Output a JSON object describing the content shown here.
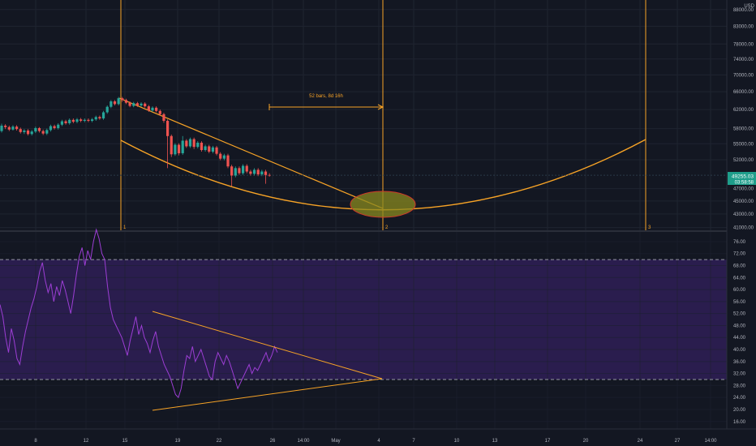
{
  "colors": {
    "background": "#131722",
    "grid": "#1f2430",
    "axis_text": "#b2b5be",
    "bull": "#26a69a",
    "bear": "#ef5350",
    "drawing": "#f7a326",
    "rsi_line": "#9c3ed4",
    "rsi_band": "#2a1d4e",
    "price_badge": "#1e9e8b",
    "ellipse_fill": "#8a8a1f",
    "ellipse_stroke": "#d03a2a"
  },
  "price_axis": {
    "currency": "USD",
    "scale": "log",
    "ticks": [
      "88000.00",
      "83000.00",
      "78000.00",
      "74000.00",
      "70000.00",
      "66000.00",
      "62000.00",
      "58000.00",
      "55000.00",
      "52000.00",
      "47000.00",
      "45000.00",
      "43000.00",
      "41000.00"
    ],
    "last_price": "49255.03",
    "countdown": "03:58:58"
  },
  "rsi_axis": {
    "ticks": [
      "76.00",
      "72.00",
      "68.00",
      "64.00",
      "60.00",
      "56.00",
      "52.00",
      "48.00",
      "44.00",
      "40.00",
      "36.00",
      "32.00",
      "28.00",
      "24.00",
      "20.00",
      "16.00"
    ],
    "upper_band": 70,
    "lower_band": 30
  },
  "time_axis": {
    "ticks": [
      "8",
      "12",
      "15",
      "19",
      "22",
      "26",
      "14:00",
      "May",
      "4",
      "7",
      "10",
      "13",
      "17",
      "20",
      "24",
      "27",
      "14:00"
    ]
  },
  "annotations": {
    "measure_label": "52 bars, 8d 16h",
    "vline_labels": [
      "1",
      "2",
      "3"
    ]
  },
  "chart_data": {
    "type": "candlestick",
    "scale": "log",
    "ylim": [
      40500,
      91000
    ],
    "x_categories": [
      "8",
      "12",
      "15",
      "19",
      "22",
      "26",
      "14:00",
      "May",
      "4",
      "7",
      "10",
      "13",
      "17",
      "20",
      "24",
      "27",
      "14:00"
    ],
    "candles": [
      [
        57500,
        58600,
        57200,
        59000
      ],
      [
        58600,
        58300,
        57900,
        58900
      ],
      [
        58300,
        57800,
        57500,
        58600
      ],
      [
        57800,
        58400,
        57600,
        58700
      ],
      [
        58400,
        57900,
        57600,
        58700
      ],
      [
        57900,
        57300,
        57000,
        58200
      ],
      [
        57300,
        57600,
        56900,
        57900
      ],
      [
        57600,
        56900,
        56600,
        57900
      ],
      [
        56900,
        57400,
        56600,
        57700
      ],
      [
        57400,
        58100,
        57100,
        58400
      ],
      [
        58100,
        57500,
        57200,
        58300
      ],
      [
        57500,
        57000,
        56700,
        57800
      ],
      [
        57000,
        57700,
        56700,
        58000
      ],
      [
        57700,
        58500,
        57400,
        58800
      ],
      [
        58500,
        58100,
        57800,
        58800
      ],
      [
        58100,
        58800,
        57800,
        59100
      ],
      [
        58800,
        59500,
        58500,
        59800
      ],
      [
        59500,
        59100,
        58800,
        59800
      ],
      [
        59100,
        59800,
        58800,
        60100
      ],
      [
        59800,
        59400,
        59100,
        60100
      ],
      [
        59400,
        59900,
        59100,
        60200
      ],
      [
        59900,
        59600,
        59300,
        60200
      ],
      [
        59600,
        59800,
        59300,
        60100
      ],
      [
        59800,
        59600,
        59300,
        60100
      ],
      [
        59600,
        59900,
        59300,
        60200
      ],
      [
        59900,
        60400,
        59600,
        60700
      ],
      [
        60400,
        60100,
        59800,
        60700
      ],
      [
        60100,
        61400,
        59800,
        61700
      ],
      [
        61400,
        62600,
        61100,
        62900
      ],
      [
        62600,
        63800,
        62300,
        64100
      ],
      [
        63800,
        63200,
        62900,
        64100
      ],
      [
        63200,
        64500,
        62900,
        64800
      ],
      [
        64500,
        64100,
        63700,
        64800
      ],
      [
        64100,
        63500,
        63200,
        64400
      ],
      [
        63500,
        62800,
        62500,
        63800
      ],
      [
        62800,
        63400,
        62500,
        63700
      ],
      [
        63400,
        62900,
        62600,
        63700
      ],
      [
        62900,
        63300,
        62600,
        63600
      ],
      [
        63300,
        62700,
        62400,
        63600
      ],
      [
        62700,
        61800,
        61500,
        63000
      ],
      [
        61800,
        62400,
        61500,
        62700
      ],
      [
        62400,
        61700,
        61400,
        62700
      ],
      [
        61700,
        61000,
        60700,
        62000
      ],
      [
        61000,
        59600,
        59200,
        61300
      ],
      [
        59600,
        56500,
        50500,
        59900
      ],
      [
        56500,
        53000,
        52500,
        56800
      ],
      [
        53000,
        54800,
        52700,
        55100
      ],
      [
        54800,
        53200,
        52800,
        55100
      ],
      [
        53200,
        55600,
        52900,
        56500
      ],
      [
        55600,
        54500,
        54200,
        55900
      ],
      [
        54500,
        55900,
        54200,
        56200
      ],
      [
        55900,
        54400,
        54000,
        56200
      ],
      [
        54400,
        55200,
        54100,
        55500
      ],
      [
        55200,
        53800,
        53500,
        55500
      ],
      [
        53800,
        54500,
        53500,
        54800
      ],
      [
        54500,
        53500,
        53200,
        54800
      ],
      [
        53500,
        54300,
        53200,
        54600
      ],
      [
        54300,
        53100,
        52800,
        54600
      ],
      [
        53100,
        52200,
        51900,
        53400
      ],
      [
        52200,
        52800,
        51900,
        53100
      ],
      [
        52800,
        50800,
        50500,
        53100
      ],
      [
        50800,
        49200,
        47400,
        51100
      ],
      [
        49200,
        50500,
        48900,
        50800
      ],
      [
        50500,
        49600,
        49300,
        50800
      ],
      [
        49600,
        50900,
        49300,
        51200
      ],
      [
        50900,
        49900,
        49600,
        51200
      ],
      [
        49900,
        49500,
        49200,
        50200
      ],
      [
        49500,
        50200,
        49200,
        50500
      ],
      [
        50200,
        49400,
        49100,
        50500
      ],
      [
        49400,
        49900,
        49100,
        50200
      ],
      [
        49900,
        49300,
        47800,
        50200
      ],
      [
        49300,
        49255,
        49000,
        49600
      ]
    ],
    "rsi": [
      55,
      51,
      44,
      39,
      47,
      43,
      37,
      35,
      41,
      46,
      50,
      54,
      57,
      61,
      66,
      69,
      63,
      59,
      62,
      56,
      61,
      58,
      63,
      60,
      56,
      52,
      58,
      65,
      71,
      74,
      68,
      73,
      70,
      76,
      80,
      77,
      72,
      70,
      61,
      54,
      50,
      48,
      46,
      44,
      41,
      38,
      43,
      47,
      51,
      45,
      48,
      44,
      42,
      39,
      43,
      46,
      41,
      38,
      35,
      33,
      31,
      28,
      25,
      24,
      27,
      33,
      38,
      37,
      41,
      36,
      38,
      40,
      37,
      34,
      31,
      30,
      36,
      39,
      37,
      35,
      38,
      36,
      33,
      30,
      27,
      29,
      31,
      33,
      35,
      32,
      34,
      33,
      35,
      37,
      39,
      36,
      38,
      41,
      39
    ]
  }
}
